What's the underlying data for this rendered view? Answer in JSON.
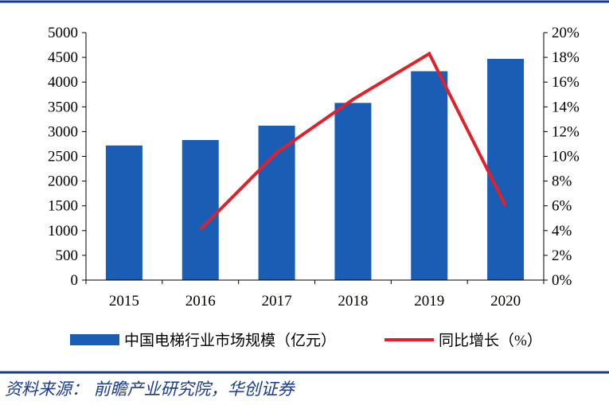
{
  "chart_data": {
    "type": "bar+line",
    "categories": [
      "2015",
      "2016",
      "2017",
      "2018",
      "2019",
      "2020"
    ],
    "series": [
      {
        "name": "中国电梯行业市场规模（亿元）",
        "type": "bar",
        "axis": "left",
        "values": [
          2720,
          2830,
          3120,
          3580,
          4220,
          4470
        ]
      },
      {
        "name": "同比增长（%）",
        "type": "line",
        "axis": "right",
        "values": [
          null,
          4.1,
          10.3,
          14.6,
          18.3,
          6.0
        ]
      }
    ],
    "left_axis": {
      "ylim": [
        0,
        5000
      ],
      "ticks": [
        "0",
        "500",
        "1000",
        "1500",
        "2000",
        "2500",
        "3000",
        "3500",
        "4000",
        "4500",
        "5000"
      ]
    },
    "right_axis": {
      "ylim": [
        0,
        20
      ],
      "ticks": [
        "0%",
        "2%",
        "4%",
        "6%",
        "8%",
        "10%",
        "12%",
        "14%",
        "16%",
        "18%",
        "20%"
      ]
    },
    "grid": false,
    "legend_position": "bottom",
    "colors": {
      "bar": "#1a5db5",
      "line": "#e3202a",
      "rule": "#1a3a8c"
    }
  },
  "source": "资料来源：  前瞻产业研究院，华创证券"
}
